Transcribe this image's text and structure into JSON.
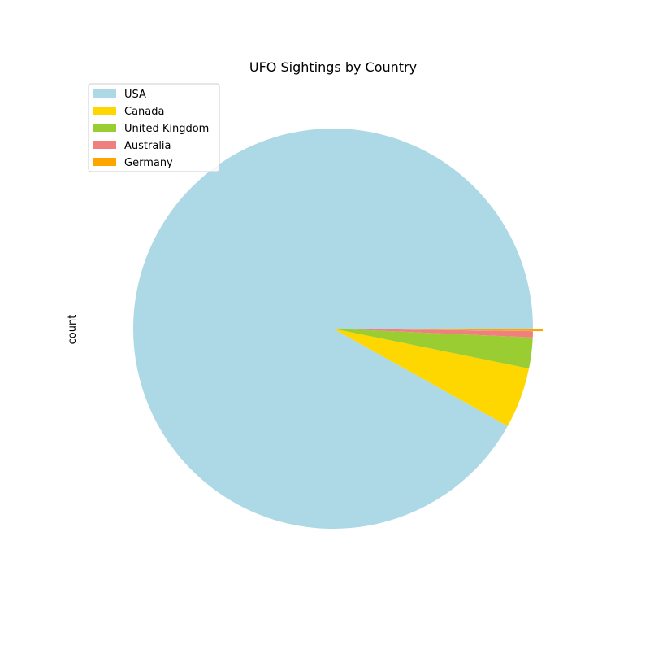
{
  "chart_data": {
    "type": "pie",
    "title": "UFO Sightings by Country",
    "ylabel": "count",
    "categories": [
      "USA",
      "Canada",
      "United Kingdom",
      "Australia",
      "Germany"
    ],
    "values": [
      91.9,
      4.9,
      2.5,
      0.5,
      0.2
    ],
    "colors": [
      "#add8e6",
      "#ffd700",
      "#9acd32",
      "#f08080",
      "#ffa500"
    ],
    "explode_last": true,
    "legend_position": "upper-left",
    "start_angle_degrees": 0,
    "direction": "clockwise"
  }
}
